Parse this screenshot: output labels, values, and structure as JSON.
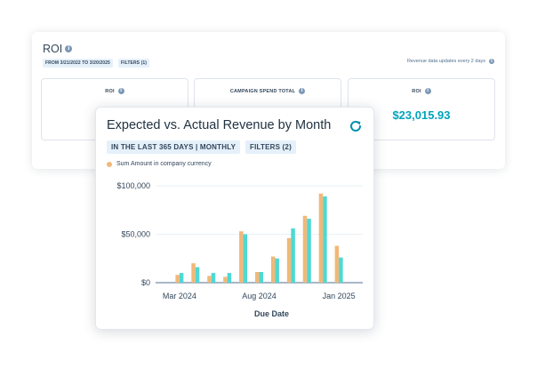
{
  "roi_panel": {
    "title": "ROI",
    "date_range_chip": "FROM 3/21/2022 TO 3/20/2025",
    "filters_chip": "FILTERS (1)",
    "revenue_note": "Revenue data updates every 2  days",
    "kpis": [
      {
        "label": "ROI",
        "value": ""
      },
      {
        "label": "CAMPAIGN SPEND TOTAL",
        "value": ""
      },
      {
        "label": "ROI",
        "value": "$23,015.93"
      }
    ]
  },
  "chart_card": {
    "title": "Expected vs. Actual Revenue by Month",
    "period_chip": "IN THE LAST 365 DAYS | MONTHLY",
    "filters_chip": "FILTERS (2)",
    "refresh_icon": "refresh-icon"
  },
  "colors": {
    "accent_teal": "#00a4bd",
    "bar_expected": "#f2b878",
    "bar_actual": "#4fd8d4",
    "chip_bg": "#e5f0fb",
    "text_dark": "#213343"
  },
  "chart_data": {
    "type": "bar",
    "title": "Expected vs. Actual Revenue by Month",
    "xlabel": "Due Date",
    "ylabel": "",
    "ylim": [
      0,
      100000
    ],
    "y_ticks": [
      0,
      50000,
      100000
    ],
    "y_tick_labels": [
      "$0",
      "$50,000",
      "$100,000"
    ],
    "x_tick_labels": [
      "Mar 2024",
      "Aug 2024",
      "Jan 2025"
    ],
    "x_tick_category_index": [
      1,
      6,
      11
    ],
    "legend_entry": "Sum Amount in company currency",
    "categories": [
      "2024-02",
      "2024-03",
      "2024-04",
      "2024-05",
      "2024-06",
      "2024-07",
      "2024-08",
      "2024-09",
      "2024-10",
      "2024-11",
      "2024-12",
      "2025-01",
      "2025-02"
    ],
    "series": [
      {
        "name": "Sum Amount in company currency",
        "values": [
          0,
          8000,
          20000,
          7000,
          6000,
          53000,
          11000,
          27000,
          46000,
          69000,
          92000,
          38000,
          0
        ]
      },
      {
        "values": [
          0,
          10000,
          16000,
          10000,
          10000,
          50000,
          11000,
          25000,
          56000,
          66000,
          89000,
          26000,
          0
        ]
      }
    ],
    "grid": true,
    "legend_position": "top-left"
  }
}
